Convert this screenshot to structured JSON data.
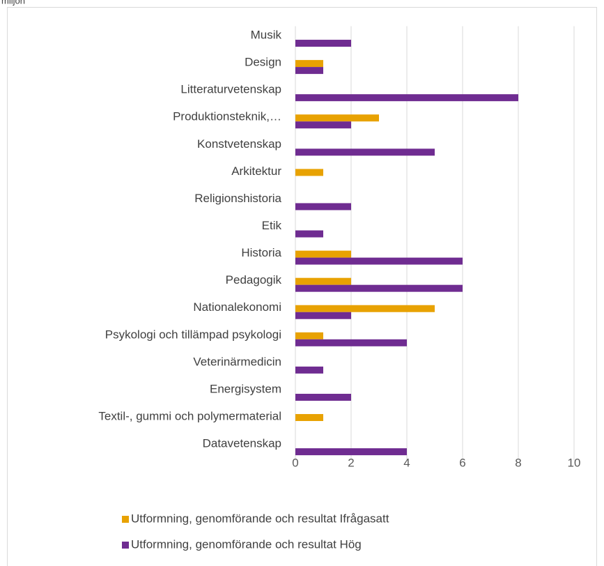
{
  "chart_data": {
    "type": "bar",
    "orientation": "horizontal",
    "title": "miljön",
    "categories": [
      "Musik",
      "Design",
      "Litteraturvetenskap",
      "Produktionsteknik,…",
      "Konstvetenskap",
      "Arkitektur",
      "Religionshistoria",
      "Etik",
      "Historia ",
      "Pedagogik",
      "Nationalekonomi",
      "Psykologi och tillämpad psykologi",
      "Veterinärmedicin ",
      "Energisystem",
      "Textil-, gummi och polymermaterial",
      "Datavetenskap"
    ],
    "series": [
      {
        "name": "Utformning, genomförande och resultat Ifrågasatt",
        "color": "#e8a202",
        "values": [
          null,
          1,
          null,
          3,
          null,
          1,
          null,
          null,
          2,
          2,
          5,
          1,
          null,
          null,
          1,
          null
        ]
      },
      {
        "name": "Utformning, genomförande och resultat Hög",
        "color": "#6f2c91",
        "values": [
          2,
          1,
          8,
          2,
          5,
          null,
          2,
          1,
          6,
          6,
          2,
          4,
          1,
          2,
          null,
          4
        ]
      }
    ],
    "xlim": [
      0,
      10
    ],
    "xticks": [
      0,
      2,
      4,
      6,
      8,
      10
    ],
    "grid": true,
    "legend": "bottom"
  }
}
